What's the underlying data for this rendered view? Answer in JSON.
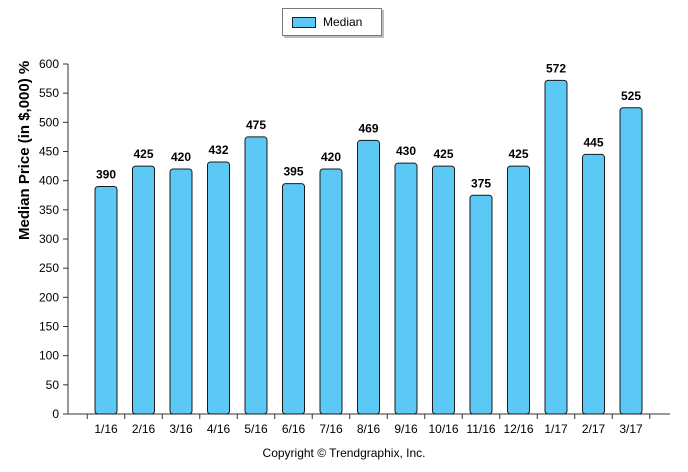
{
  "chart_data": {
    "type": "bar",
    "categories": [
      "1/16",
      "2/16",
      "3/16",
      "4/16",
      "5/16",
      "6/16",
      "7/16",
      "8/16",
      "9/16",
      "10/16",
      "11/16",
      "12/16",
      "1/17",
      "2/17",
      "3/17"
    ],
    "series": [
      {
        "name": "Median",
        "values": [
          390,
          425,
          420,
          432,
          475,
          395,
          420,
          469,
          430,
          425,
          375,
          425,
          572,
          445,
          525
        ]
      }
    ],
    "ylabel": "Median Price (in $,000) %",
    "xlabel": "",
    "ylim": [
      0,
      600
    ],
    "yticks": [
      0,
      50,
      100,
      150,
      200,
      250,
      300,
      350,
      400,
      450,
      500,
      550,
      600
    ],
    "grid": false,
    "legend": "top-center",
    "data_labels": true
  },
  "colors": {
    "bar_fill": "#5bc8f5",
    "bar_stroke": "#1a1a1a",
    "axis": "#333333"
  },
  "footer": {
    "copyright": "Copyright © Trendgraphix, Inc."
  }
}
